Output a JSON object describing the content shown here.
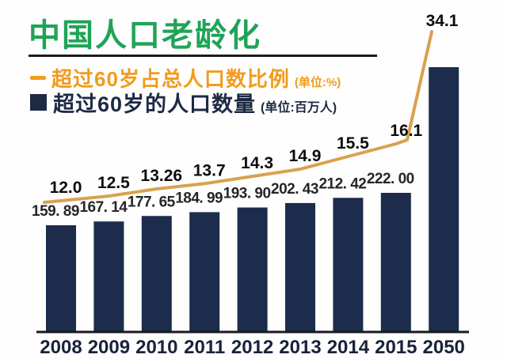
{
  "page": {
    "background": "#fefefe"
  },
  "title": {
    "text": "中国人口老龄化",
    "color": "#1FA456"
  },
  "legend": {
    "percentage": {
      "label": "超过60岁占总人口数比例",
      "unit": "(单位:%)",
      "color": "#F29B1D",
      "marker": "line-dash"
    },
    "population": {
      "label": "超过60岁的人口数量",
      "unit": "(单位:百万人)",
      "color": "#1E2A44",
      "marker": "square"
    }
  },
  "chart_data": {
    "type": "bar",
    "title": "中国人口老龄化",
    "categories": [
      "2008",
      "2009",
      "2010",
      "2011",
      "2012",
      "2013",
      "2014",
      "2015",
      "2050"
    ],
    "series": [
      {
        "name": "超过60岁占总人口数比例",
        "type": "line",
        "unit": "%",
        "color": "#D9A14E",
        "values": [
          12.0,
          12.5,
          13.26,
          13.7,
          14.3,
          14.9,
          15.5,
          16.1,
          34.1
        ],
        "point_labels": [
          "12.0",
          "12.5",
          "13.26",
          "13.7",
          "14.3",
          "14.9",
          "15.5",
          "16.1",
          "34.1"
        ]
      },
      {
        "name": "超过60岁的人口数量",
        "type": "bar",
        "unit": "百万人",
        "color": "#1D2B4D",
        "values": [
          159.89,
          167.14,
          177.65,
          184.99,
          193.9,
          202.43,
          212.42,
          222.0,
          null
        ],
        "bar_labels": [
          "159. 89",
          "167. 14",
          "177. 65",
          "184. 99",
          "193. 90",
          "202. 43",
          "212. 42",
          "222. 00",
          ""
        ]
      }
    ],
    "xlabel": "",
    "ylabel": "",
    "grid": false,
    "legend_position": "top-left",
    "text_colors": {
      "bar_labels": "#262626",
      "point_labels": "#0d0d0d",
      "axis_labels": "#18223B",
      "axis_line": "#1a1a1a"
    }
  }
}
